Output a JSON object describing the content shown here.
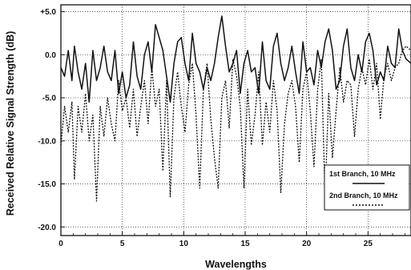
{
  "chart_data": {
    "type": "line",
    "title": "",
    "xlabel": "Wavelengths",
    "ylabel": "Received Relative Signal Strength (dB)",
    "xlim": [
      0,
      28.5
    ],
    "ylim": [
      -21,
      5.8
    ],
    "x_ticks": [
      0,
      5,
      10,
      15,
      20,
      25
    ],
    "x_tick_labels": [
      "0",
      "5",
      "10",
      "15",
      "20",
      "25"
    ],
    "y_ticks": [
      5,
      0,
      -5,
      -10,
      -15,
      -20
    ],
    "y_tick_labels": [
      "+5.0",
      "0.0",
      "-5.0",
      "-10.0",
      "-15.0",
      "-20.0"
    ],
    "grid": true,
    "legend_position": "right-middle",
    "series": [
      {
        "name": "1st Branch, 10 MHz",
        "style": "solid",
        "x": [
          0,
          0.3,
          0.6,
          0.9,
          1.1,
          1.4,
          1.7,
          2.0,
          2.3,
          2.6,
          2.9,
          3.2,
          3.5,
          3.8,
          4.1,
          4.4,
          4.7,
          5.0,
          5.3,
          5.6,
          5.9,
          6.2,
          6.5,
          6.8,
          7.1,
          7.4,
          7.7,
          8.0,
          8.3,
          8.6,
          8.9,
          9.2,
          9.5,
          9.8,
          10.1,
          10.4,
          10.7,
          11.0,
          11.3,
          11.6,
          11.9,
          12.2,
          12.5,
          12.8,
          13.1,
          13.4,
          13.7,
          14.0,
          14.3,
          14.6,
          14.9,
          15.2,
          15.5,
          15.8,
          16.1,
          16.4,
          16.7,
          17.0,
          17.3,
          17.6,
          17.9,
          18.2,
          18.5,
          18.8,
          19.1,
          19.4,
          19.7,
          20.0,
          20.3,
          20.6,
          20.9,
          21.2,
          21.5,
          21.8,
          22.1,
          22.4,
          22.7,
          23.0,
          23.3,
          23.6,
          23.9,
          24.2,
          24.5,
          24.8,
          25.1,
          25.4,
          25.7,
          26.0,
          26.3,
          26.6,
          26.9,
          27.2,
          27.5,
          27.8,
          28.1,
          28.5
        ],
        "values": [
          -1.5,
          -2.5,
          0.5,
          -3.0,
          1.0,
          -2.0,
          -4.0,
          -1.0,
          -5.5,
          0.5,
          -3.0,
          -1.5,
          1.0,
          -2.0,
          -3.0,
          0.5,
          -4.5,
          -2.0,
          -5.0,
          -3.5,
          1.5,
          -2.5,
          -4.0,
          0.0,
          1.5,
          -2.0,
          3.5,
          2.0,
          0.5,
          -2.5,
          -5.5,
          -1.0,
          1.5,
          2.0,
          -1.0,
          -3.0,
          2.5,
          -1.0,
          -2.0,
          -4.0,
          -1.5,
          -3.0,
          -1.0,
          2.0,
          4.5,
          1.0,
          -2.0,
          -1.0,
          0.5,
          -4.5,
          -1.0,
          0.5,
          -2.0,
          -1.5,
          -4.5,
          1.5,
          -3.0,
          -4.0,
          1.0,
          2.5,
          -1.0,
          -3.0,
          -1.5,
          1.0,
          -2.0,
          -4.5,
          1.5,
          -2.0,
          -1.5,
          -3.5,
          0.5,
          -1.5,
          1.5,
          3.0,
          0.5,
          -4.0,
          -3.0,
          1.0,
          3.0,
          -1.5,
          -3.0,
          0.0,
          -2.0,
          1.5,
          2.5,
          0.5,
          -3.5,
          -2.0,
          -3.0,
          1.0,
          -1.0,
          -1.5,
          3.0,
          0.5,
          -0.5,
          -1.0
        ]
      },
      {
        "name": "2nd Branch, 10 MHz",
        "style": "dashed",
        "x": [
          0,
          0.3,
          0.6,
          0.9,
          1.1,
          1.4,
          1.7,
          2.0,
          2.3,
          2.6,
          2.9,
          3.2,
          3.5,
          3.8,
          4.1,
          4.4,
          4.7,
          5.0,
          5.3,
          5.6,
          5.9,
          6.2,
          6.5,
          6.8,
          7.1,
          7.4,
          7.7,
          8.0,
          8.3,
          8.6,
          8.9,
          9.2,
          9.5,
          9.8,
          10.1,
          10.4,
          10.7,
          11.0,
          11.3,
          11.6,
          11.9,
          12.2,
          12.5,
          12.8,
          13.1,
          13.4,
          13.7,
          14.0,
          14.3,
          14.6,
          14.9,
          15.2,
          15.5,
          15.8,
          16.1,
          16.4,
          16.7,
          17.0,
          17.3,
          17.6,
          17.9,
          18.2,
          18.5,
          18.8,
          19.1,
          19.4,
          19.7,
          20.0,
          20.3,
          20.6,
          20.9,
          21.2,
          21.5,
          21.8,
          22.1,
          22.4,
          22.7,
          23.0,
          23.3,
          23.6,
          23.9,
          24.2,
          24.5,
          24.8,
          25.1,
          25.4,
          25.7,
          26.0,
          26.3,
          26.6,
          26.9,
          27.2,
          27.5,
          27.8,
          28.1,
          28.5
        ],
        "values": [
          -10.5,
          -6.0,
          -9.0,
          -5.5,
          -14.5,
          -6.0,
          -9.0,
          -4.5,
          -10.0,
          -7.0,
          -17.0,
          -6.0,
          -9.5,
          -5.0,
          -8.0,
          -10.0,
          -3.0,
          -6.5,
          -5.0,
          -8.5,
          -4.0,
          -9.5,
          -6.0,
          -3.0,
          -8.0,
          -1.5,
          -6.0,
          -4.0,
          -13.5,
          -3.0,
          -16.5,
          -5.0,
          -2.0,
          -6.0,
          -9.0,
          -3.5,
          -1.0,
          -7.0,
          -15.5,
          -4.0,
          -1.0,
          -7.5,
          -12.0,
          -15.5,
          -5.0,
          -3.0,
          -8.5,
          -0.5,
          -2.5,
          -6.0,
          -15.5,
          -4.0,
          -10.5,
          -7.0,
          -2.0,
          -10.5,
          -5.5,
          -9.0,
          -3.0,
          -6.5,
          -16.0,
          -8.0,
          -4.5,
          -3.0,
          -6.0,
          -12.5,
          -4.0,
          -2.0,
          -6.5,
          -13.0,
          -4.0,
          -0.5,
          -16.5,
          -4.5,
          -12.0,
          -6.5,
          -1.5,
          -5.5,
          -3.0,
          -3.5,
          -9.5,
          -4.0,
          -1.5,
          -3.5,
          -0.5,
          -4.0,
          -1.0,
          -7.5,
          -2.5,
          -1.0,
          -3.0,
          -1.5,
          -1.0,
          0.5,
          1.0,
          0.5
        ]
      }
    ]
  }
}
